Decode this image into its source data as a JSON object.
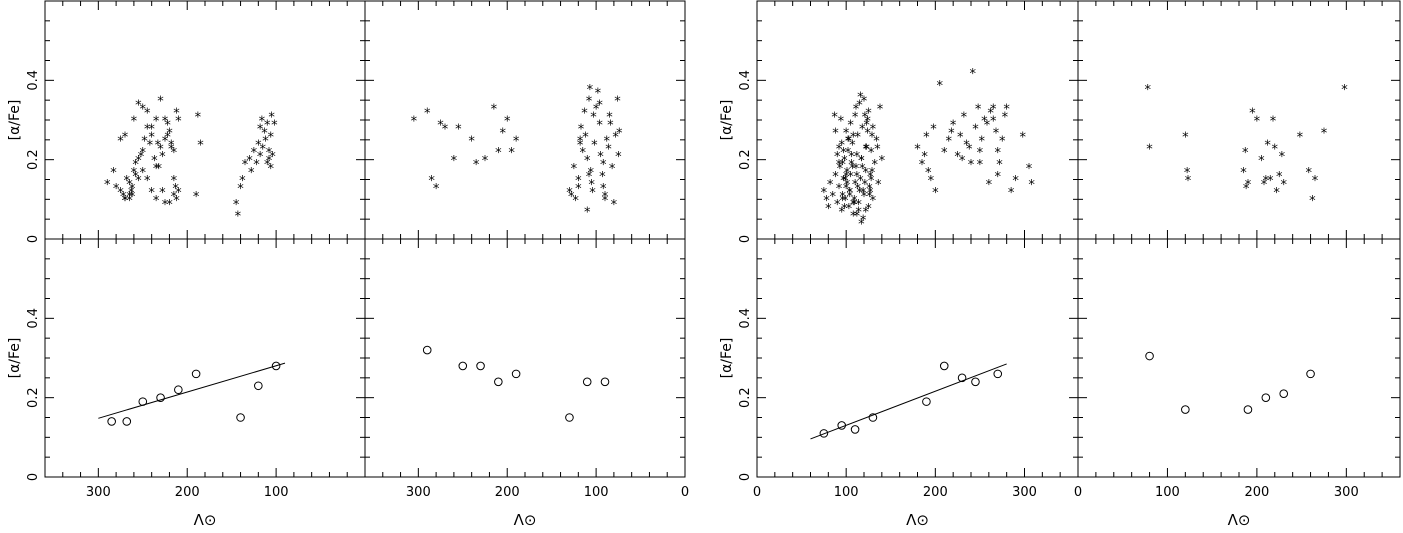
{
  "figure": {
    "ylabel": "[α/Fe]",
    "xlabel": "Λ⊙"
  },
  "chart_data": [
    {
      "id": "left-top-left",
      "type": "scatter",
      "marker": "star",
      "xlim": [
        360,
        0
      ],
      "ylim": [
        0,
        0.6
      ],
      "xticks": [
        300,
        200,
        100
      ],
      "yticks": [
        0,
        0.2,
        0.4
      ],
      "x": [
        290,
        283,
        280,
        275,
        272,
        270,
        268,
        265,
        263,
        262,
        260,
        258,
        255,
        252,
        250,
        248,
        245,
        242,
        240,
        237,
        235,
        233,
        230,
        228,
        225,
        222,
        220,
        218,
        215,
        212,
        210,
        275,
        270,
        265,
        260,
        255,
        250,
        245,
        240,
        235,
        230,
        225,
        222,
        218,
        215,
        213,
        210,
        190,
        188,
        185,
        270,
        265,
        262,
        258,
        255,
        250,
        245,
        240,
        235,
        232,
        228,
        225,
        220,
        215,
        212,
        145,
        143,
        140,
        138,
        135,
        130,
        128,
        125,
        122,
        120,
        118,
        116,
        115,
        113,
        112,
        110,
        108,
        106,
        105,
        118,
        110,
        108,
        106,
        104,
        102
      ],
      "y": [
        0.14,
        0.17,
        0.13,
        0.12,
        0.11,
        0.1,
        0.15,
        0.14,
        0.12,
        0.11,
        0.17,
        0.16,
        0.15,
        0.21,
        0.22,
        0.25,
        0.28,
        0.24,
        0.26,
        0.2,
        0.18,
        0.24,
        0.23,
        0.21,
        0.3,
        0.29,
        0.27,
        0.23,
        0.22,
        0.32,
        0.3,
        0.25,
        0.26,
        0.1,
        0.3,
        0.34,
        0.33,
        0.32,
        0.28,
        0.3,
        0.35,
        0.25,
        0.26,
        0.24,
        0.15,
        0.13,
        0.12,
        0.11,
        0.31,
        0.24,
        0.1,
        0.11,
        0.13,
        0.19,
        0.2,
        0.17,
        0.15,
        0.12,
        0.1,
        0.18,
        0.12,
        0.09,
        0.09,
        0.11,
        0.1,
        0.09,
        0.06,
        0.13,
        0.15,
        0.19,
        0.2,
        0.17,
        0.22,
        0.19,
        0.24,
        0.28,
        0.3,
        0.23,
        0.27,
        0.25,
        0.29,
        0.22,
        0.26,
        0.31,
        0.21,
        0.19,
        0.2,
        0.18,
        0.21,
        0.29
      ]
    },
    {
      "id": "left-top-right",
      "type": "scatter",
      "marker": "star",
      "xlim": [
        360,
        0
      ],
      "ylim": [
        0,
        0.6
      ],
      "xticks": [
        300,
        200,
        100,
        0
      ],
      "yticks": [
        0,
        0.2,
        0.4
      ],
      "x": [
        305,
        290,
        285,
        280,
        275,
        270,
        260,
        255,
        240,
        235,
        225,
        215,
        210,
        205,
        200,
        195,
        190,
        130,
        128,
        125,
        123,
        120,
        118,
        117,
        115,
        113,
        112,
        110,
        108,
        107,
        106,
        105,
        104,
        103,
        102,
        100,
        98,
        96,
        95,
        93,
        92,
        90,
        88,
        86,
        85,
        84,
        82,
        80,
        78,
        76,
        75,
        74,
        110,
        96,
        90,
        118,
        92,
        120,
        108
      ],
      "y": [
        0.3,
        0.32,
        0.15,
        0.13,
        0.29,
        0.28,
        0.2,
        0.28,
        0.25,
        0.19,
        0.2,
        0.33,
        0.22,
        0.27,
        0.3,
        0.22,
        0.25,
        0.12,
        0.11,
        0.18,
        0.1,
        0.15,
        0.24,
        0.28,
        0.22,
        0.32,
        0.26,
        0.2,
        0.35,
        0.38,
        0.17,
        0.14,
        0.12,
        0.31,
        0.24,
        0.33,
        0.37,
        0.29,
        0.21,
        0.16,
        0.13,
        0.1,
        0.25,
        0.23,
        0.31,
        0.29,
        0.18,
        0.09,
        0.26,
        0.35,
        0.21,
        0.27,
        0.07,
        0.34,
        0.11,
        0.25,
        0.19,
        0.13,
        0.16
      ]
    },
    {
      "id": "left-bottom-left",
      "type": "scatter",
      "marker": "circle",
      "xlim": [
        360,
        0
      ],
      "ylim": [
        0,
        0.6
      ],
      "xticks": [
        300,
        200,
        100
      ],
      "yticks": [
        0,
        0.2,
        0.4
      ],
      "x": [
        285,
        268,
        250,
        230,
        210,
        190,
        140,
        120,
        100
      ],
      "y": [
        0.14,
        0.14,
        0.19,
        0.2,
        0.22,
        0.26,
        0.15,
        0.23,
        0.28
      ],
      "fit": {
        "x": [
          300,
          90
        ],
        "y": [
          0.148,
          0.287
        ]
      }
    },
    {
      "id": "left-bottom-right",
      "type": "scatter",
      "marker": "circle",
      "xlim": [
        360,
        0
      ],
      "ylim": [
        0,
        0.6
      ],
      "xticks": [
        300,
        200,
        100,
        0
      ],
      "yticks": [
        0,
        0.2,
        0.4
      ],
      "x": [
        290,
        250,
        230,
        210,
        190,
        130,
        110,
        90
      ],
      "y": [
        0.32,
        0.28,
        0.28,
        0.24,
        0.26,
        0.15,
        0.24,
        0.24
      ]
    },
    {
      "id": "right-top-left",
      "type": "scatter",
      "marker": "star",
      "xlim": [
        0,
        360
      ],
      "ylim": [
        0,
        0.6
      ],
      "xticks": [
        0,
        100,
        200,
        300
      ],
      "yticks": [
        0,
        0.2,
        0.4
      ],
      "x": [
        75,
        78,
        80,
        82,
        85,
        88,
        90,
        92,
        93,
        95,
        96,
        97,
        98,
        99,
        100,
        101,
        102,
        103,
        104,
        105,
        106,
        107,
        108,
        109,
        110,
        111,
        112,
        113,
        114,
        115,
        116,
        117,
        118,
        119,
        120,
        121,
        122,
        123,
        124,
        125,
        126,
        127,
        128,
        129,
        130,
        132,
        134,
        136,
        138,
        90,
        95,
        100,
        105,
        110,
        115,
        120,
        125,
        130,
        92,
        97,
        102,
        107,
        112,
        117,
        122,
        127,
        94,
        99,
        104,
        109,
        114,
        119,
        124,
        129,
        96,
        101,
        106,
        111,
        116,
        121,
        126,
        98,
        103,
        108,
        113,
        118,
        123,
        87,
        140,
        135,
        128,
        122,
        117,
        112,
        108,
        104,
        100,
        96,
        92,
        88
      ],
      "y": [
        0.12,
        0.1,
        0.08,
        0.14,
        0.11,
        0.16,
        0.09,
        0.13,
        0.18,
        0.07,
        0.11,
        0.15,
        0.2,
        0.1,
        0.13,
        0.17,
        0.22,
        0.08,
        0.12,
        0.16,
        0.19,
        0.24,
        0.06,
        0.1,
        0.14,
        0.18,
        0.21,
        0.26,
        0.09,
        0.12,
        0.15,
        0.2,
        0.28,
        0.05,
        0.11,
        0.14,
        0.17,
        0.23,
        0.3,
        0.08,
        0.13,
        0.16,
        0.22,
        0.26,
        0.1,
        0.19,
        0.25,
        0.14,
        0.33,
        0.21,
        0.24,
        0.27,
        0.29,
        0.31,
        0.34,
        0.35,
        0.32,
        0.28,
        0.19,
        0.22,
        0.25,
        0.18,
        0.16,
        0.2,
        0.23,
        0.12,
        0.3,
        0.15,
        0.11,
        0.09,
        0.07,
        0.12,
        0.27,
        0.17,
        0.1,
        0.14,
        0.21,
        0.33,
        0.36,
        0.31,
        0.11,
        0.08,
        0.25,
        0.26,
        0.13,
        0.18,
        0.29,
        0.31,
        0.2,
        0.23,
        0.15,
        0.07,
        0.04,
        0.06,
        0.09,
        0.12,
        0.16,
        0.19,
        0.23,
        0.27
      ],
      "x2": [
        180,
        185,
        188,
        190,
        192,
        195,
        198,
        200,
        205,
        210,
        215,
        218,
        220,
        225,
        228,
        230,
        232,
        235,
        238,
        240,
        242,
        245,
        248,
        250,
        252,
        255,
        258,
        260,
        262,
        265,
        268,
        270,
        272,
        275,
        278,
        280,
        285,
        290,
        298,
        305,
        308,
        250,
        265,
        270
      ],
      "y2": [
        0.23,
        0.19,
        0.21,
        0.26,
        0.17,
        0.15,
        0.28,
        0.12,
        0.39,
        0.22,
        0.25,
        0.27,
        0.29,
        0.21,
        0.26,
        0.2,
        0.31,
        0.24,
        0.23,
        0.19,
        0.42,
        0.28,
        0.33,
        0.22,
        0.25,
        0.3,
        0.29,
        0.14,
        0.32,
        0.33,
        0.27,
        0.22,
        0.19,
        0.25,
        0.31,
        0.33,
        0.12,
        0.15,
        0.26,
        0.18,
        0.14,
        0.19,
        0.3,
        0.16
      ]
    },
    {
      "id": "right-top-right",
      "type": "scatter",
      "marker": "star",
      "xlim": [
        0,
        360
      ],
      "ylim": [
        0,
        0.6
      ],
      "xticks": [
        0,
        100,
        200,
        300
      ],
      "yticks": [
        0,
        0.2,
        0.4
      ],
      "x": [
        78,
        80,
        120,
        122,
        123,
        185,
        187,
        188,
        190,
        195,
        200,
        205,
        208,
        210,
        212,
        215,
        218,
        220,
        222,
        225,
        228,
        230,
        248,
        258,
        262,
        265,
        275,
        298
      ],
      "y": [
        0.38,
        0.23,
        0.26,
        0.17,
        0.15,
        0.17,
        0.22,
        0.13,
        0.14,
        0.32,
        0.3,
        0.2,
        0.14,
        0.15,
        0.24,
        0.15,
        0.3,
        0.23,
        0.12,
        0.16,
        0.21,
        0.14,
        0.26,
        0.17,
        0.1,
        0.15,
        0.27,
        0.38
      ]
    },
    {
      "id": "right-bottom-left",
      "type": "scatter",
      "marker": "circle",
      "xlim": [
        0,
        360
      ],
      "ylim": [
        0,
        0.6
      ],
      "xticks": [
        0,
        100,
        200,
        300
      ],
      "yticks": [
        0,
        0.2,
        0.4
      ],
      "x": [
        75,
        95,
        110,
        130,
        190,
        210,
        230,
        245,
        270
      ],
      "y": [
        0.11,
        0.13,
        0.12,
        0.15,
        0.19,
        0.28,
        0.25,
        0.24,
        0.26
      ],
      "fit": {
        "x": [
          60,
          280
        ],
        "y": [
          0.096,
          0.285
        ]
      }
    },
    {
      "id": "right-bottom-right",
      "type": "scatter",
      "marker": "circle",
      "xlim": [
        0,
        360
      ],
      "ylim": [
        0,
        0.6
      ],
      "xticks": [
        0,
        100,
        200,
        300
      ],
      "yticks": [
        0,
        0.2,
        0.4
      ],
      "x": [
        80,
        120,
        190,
        210,
        230,
        260
      ],
      "y": [
        0.305,
        0.17,
        0.17,
        0.2,
        0.21,
        0.26
      ]
    }
  ]
}
